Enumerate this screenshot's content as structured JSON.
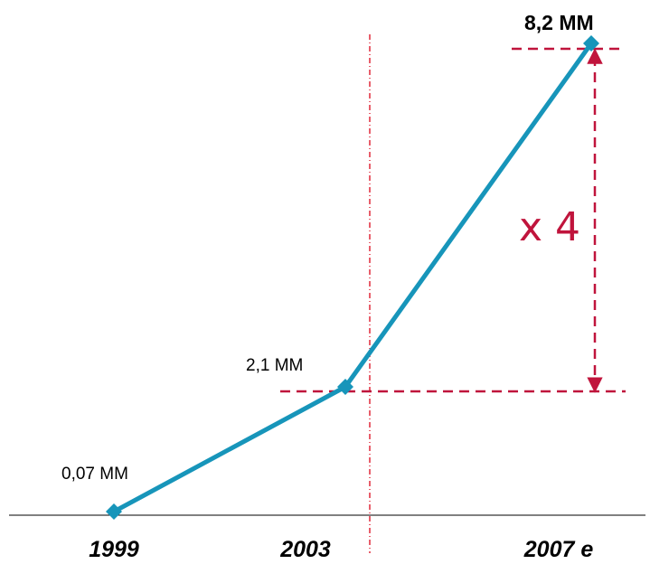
{
  "chart_data": {
    "type": "line",
    "title": "",
    "xlabel": "",
    "ylabel": "",
    "categories": [
      "1999",
      "2003",
      "2007 e"
    ],
    "series": [
      {
        "values": [
          0.07,
          2.1,
          8.2
        ],
        "labels": [
          "0,07 MM",
          "2,1 MM",
          "8,2 MM"
        ]
      }
    ],
    "ylim": [
      0,
      8.2
    ],
    "grid": false,
    "legend": "none",
    "annotation": {
      "text": "x 4",
      "from": "2003",
      "to": "2007 e"
    },
    "divider_after": "2003"
  },
  "colors": {
    "line": "#1795ba",
    "annotation": "#c0143c",
    "axis": "#000000"
  }
}
